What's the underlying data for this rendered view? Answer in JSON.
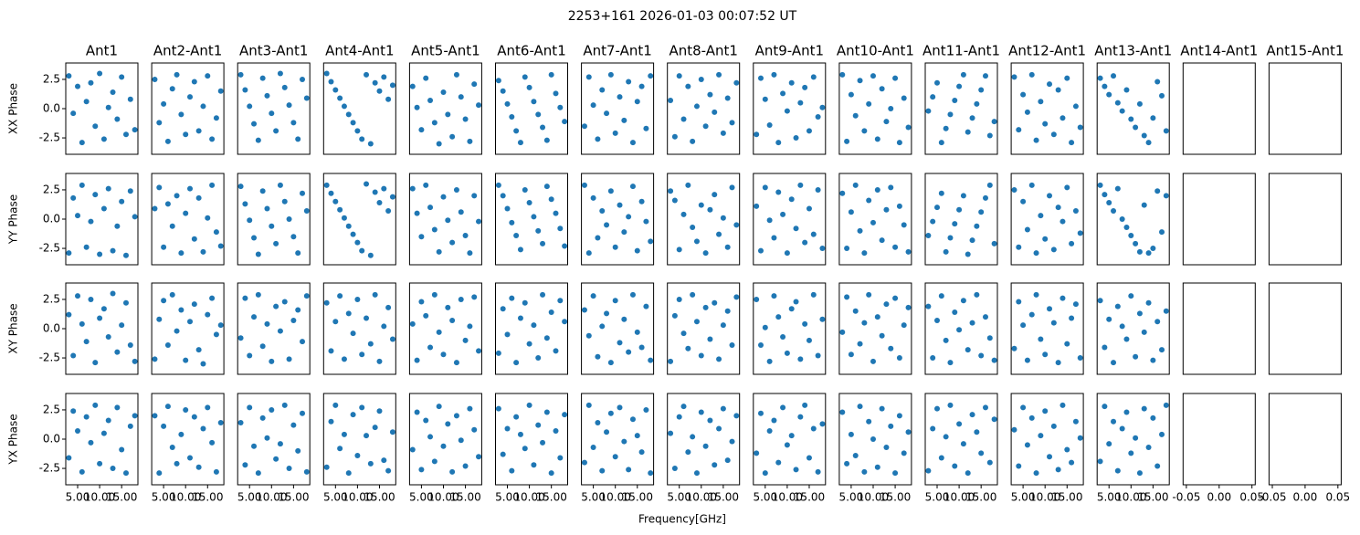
{
  "chart_data": {
    "type": "scatter",
    "title": "2253+161 2026-01-03 00:07:52 UT",
    "xlabel": "Frequency[GHz]",
    "color": "#1f77b4",
    "row_labels": [
      "XX Phase",
      "YY Phase",
      "XY Phase",
      "YX Phase"
    ],
    "x": [
      3,
      4,
      5,
      6,
      7,
      8,
      9,
      10,
      11,
      12,
      13,
      14,
      15,
      16,
      17,
      18
    ],
    "xlim": [
      2.3,
      18.7
    ],
    "xticks": [
      {
        "value": 5,
        "label": "5.00"
      },
      {
        "value": 10,
        "label": "10.00"
      },
      {
        "value": 15,
        "label": "15.00"
      }
    ],
    "ylim": [
      -3.9,
      3.9
    ],
    "yticks": [
      -2.5,
      {
        "value": 0,
        "label": "0.0"
      },
      2.5
    ],
    "columns": [
      {
        "title": "Ant1",
        "rows": [
          [
            2.8,
            -0.4,
            1.9,
            -2.9,
            0.6,
            2.2,
            -1.5,
            3.0,
            -2.6,
            0.1,
            1.4,
            -0.9,
            2.7,
            -2.2,
            0.8,
            -1.8
          ],
          [
            -2.9,
            1.8,
            0.3,
            2.9,
            -2.4,
            -0.2,
            2.1,
            -3.0,
            0.9,
            2.6,
            -2.7,
            -0.6,
            1.5,
            -3.1,
            2.4,
            0.2
          ],
          [
            1.2,
            -2.3,
            2.8,
            0.4,
            -1.1,
            2.5,
            -2.9,
            0.9,
            1.7,
            -0.7,
            3.0,
            -2.0,
            0.3,
            2.2,
            -1.4,
            -2.8
          ],
          [
            -1.6,
            2.4,
            0.7,
            -2.8,
            1.9,
            -0.3,
            2.9,
            -2.1,
            0.5,
            1.6,
            -2.5,
            2.7,
            -0.9,
            -2.9,
            1.1,
            2.0
          ]
        ]
      },
      {
        "title": "Ant2-Ant1",
        "rows": [
          [
            2.5,
            -1.2,
            0.4,
            -2.8,
            1.7,
            2.9,
            -0.5,
            -2.2,
            1.0,
            2.3,
            -1.9,
            0.2,
            2.8,
            -2.6,
            -0.8,
            1.5
          ],
          [
            0.9,
            2.7,
            -2.4,
            1.3,
            -0.6,
            2.0,
            -2.9,
            0.5,
            2.6,
            -1.7,
            1.8,
            -2.8,
            0.1,
            2.9,
            -1.1,
            -2.3
          ],
          [
            -2.6,
            0.8,
            2.4,
            -1.4,
            2.9,
            -0.2,
            1.6,
            -2.7,
            0.6,
            2.1,
            -1.8,
            -3.0,
            1.2,
            2.6,
            -0.5,
            0.3
          ],
          [
            2.0,
            -2.9,
            1.1,
            2.8,
            -0.7,
            -2.1,
            0.4,
            2.5,
            -1.6,
            1.9,
            -2.4,
            0.9,
            2.7,
            -0.3,
            -2.8,
            1.4
          ]
        ]
      },
      {
        "title": "Ant3-Ant1",
        "rows": [
          [
            2.9,
            1.6,
            0.2,
            -1.3,
            -2.7,
            2.6,
            1.1,
            -0.4,
            -1.9,
            3.0,
            1.8,
            0.3,
            -1.2,
            -2.6,
            2.5,
            0.9
          ],
          [
            2.8,
            1.3,
            -0.1,
            -1.6,
            -3.0,
            2.4,
            0.9,
            -0.6,
            -2.1,
            2.9,
            1.5,
            0.0,
            -1.5,
            -2.9,
            2.2,
            0.7
          ],
          [
            -0.8,
            2.6,
            -2.3,
            1.0,
            2.9,
            -1.5,
            0.4,
            -2.8,
            1.9,
            -0.2,
            2.3,
            -2.6,
            0.7,
            1.6,
            -1.1,
            2.8
          ],
          [
            1.4,
            -2.2,
            2.7,
            -0.6,
            -2.9,
            1.8,
            0.1,
            2.5,
            -1.7,
            -0.4,
            2.9,
            -2.5,
            1.2,
            -1.0,
            2.2,
            -2.8
          ]
        ]
      },
      {
        "title": "Ant4-Ant1",
        "rows": [
          [
            3.0,
            2.3,
            1.6,
            0.9,
            0.2,
            -0.5,
            -1.2,
            -1.9,
            -2.6,
            2.9,
            -3.0,
            2.2,
            1.5,
            2.7,
            0.8,
            2.0
          ],
          [
            2.9,
            2.2,
            1.5,
            0.8,
            0.1,
            -0.6,
            -1.3,
            -2.0,
            -2.7,
            3.0,
            -3.1,
            2.3,
            1.4,
            2.6,
            0.7,
            1.9
          ],
          [
            2.2,
            -1.9,
            0.6,
            2.8,
            -2.6,
            1.3,
            -0.4,
            2.5,
            -2.2,
            0.9,
            -1.3,
            2.9,
            -2.8,
            0.2,
            1.8,
            -0.9
          ],
          [
            -2.4,
            1.5,
            2.9,
            -0.8,
            0.4,
            -2.9,
            2.1,
            -1.4,
            2.7,
            0.3,
            -2.1,
            1.0,
            2.4,
            -1.8,
            -2.7,
            0.6
          ]
        ]
      },
      {
        "title": "Ant5-Ant1",
        "rows": [
          [
            1.9,
            0.1,
            -1.8,
            2.6,
            0.7,
            -1.2,
            -3.0,
            1.4,
            -0.5,
            -2.4,
            2.9,
            1.0,
            -0.9,
            -2.8,
            2.1,
            0.3
          ],
          [
            2.6,
            0.5,
            -1.5,
            2.9,
            1.0,
            -0.9,
            -2.8,
            1.9,
            -0.1,
            -2.0,
            2.5,
            0.6,
            -1.4,
            -2.9,
            2.0,
            -0.2
          ],
          [
            0.4,
            -2.7,
            2.3,
            1.1,
            -1.6,
            2.9,
            -0.3,
            -2.2,
            1.8,
            0.7,
            -2.9,
            2.5,
            -1.0,
            0.2,
            2.7,
            -1.9
          ],
          [
            -0.9,
            2.3,
            -2.6,
            1.6,
            0.2,
            -1.9,
            2.8,
            -0.6,
            1.3,
            -2.8,
            2.0,
            -0.1,
            -2.3,
            2.6,
            0.8,
            -1.5
          ]
        ]
      },
      {
        "title": "Ant6-Ant1",
        "rows": [
          [
            2.4,
            1.5,
            0.4,
            -0.7,
            -1.9,
            -2.9,
            2.7,
            1.8,
            0.6,
            -0.5,
            -1.6,
            -2.7,
            2.9,
            1.3,
            0.1,
            -1.1
          ],
          [
            2.9,
            2.0,
            0.9,
            -0.3,
            -1.4,
            -2.6,
            2.5,
            1.4,
            0.2,
            -1.0,
            -2.1,
            2.8,
            1.7,
            0.5,
            -0.8,
            -2.3
          ],
          [
            -2.1,
            1.7,
            -0.5,
            2.6,
            -2.9,
            0.9,
            2.2,
            -1.3,
            0.3,
            -2.5,
            2.9,
            -0.8,
            1.4,
            -1.9,
            2.4,
            0.6
          ],
          [
            2.6,
            -1.3,
            0.9,
            -2.7,
            1.9,
            0.4,
            -0.8,
            2.9,
            -2.2,
            1.2,
            -0.3,
            2.3,
            -2.9,
            0.7,
            -1.6,
            2.1
          ]
        ]
      },
      {
        "title": "Ant7-Ant1",
        "rows": [
          [
            -1.5,
            2.7,
            0.3,
            -2.6,
            1.6,
            -0.4,
            2.9,
            -2.1,
            1.0,
            -1.0,
            2.3,
            -2.9,
            0.6,
            1.9,
            -1.7,
            2.8
          ],
          [
            2.9,
            -2.9,
            1.8,
            -1.6,
            0.7,
            -0.5,
            2.4,
            -2.4,
            1.2,
            -1.1,
            0.2,
            2.8,
            -2.7,
            1.5,
            -0.2,
            -1.9
          ],
          [
            1.6,
            -0.6,
            2.8,
            -2.4,
            0.2,
            1.3,
            -2.9,
            2.4,
            -1.2,
            0.8,
            -2.0,
            2.9,
            -0.3,
            -1.6,
            1.9,
            -2.7
          ],
          [
            -2.0,
            2.9,
            -0.7,
            1.4,
            -2.7,
            0.6,
            2.2,
            -1.5,
            2.7,
            -0.2,
            -2.6,
            1.7,
            0.3,
            -1.1,
            2.5,
            -2.9
          ]
        ]
      },
      {
        "title": "Ant8-Ant1",
        "rows": [
          [
            0.7,
            -2.4,
            2.8,
            -0.9,
            1.9,
            -2.8,
            0.2,
            2.5,
            -1.5,
            1.2,
            -0.3,
            2.9,
            -2.1,
            0.9,
            -1.2,
            2.2
          ],
          [
            2.4,
            1.6,
            -2.6,
            0.4,
            2.9,
            -0.7,
            -1.9,
            1.2,
            -2.9,
            0.8,
            2.1,
            -1.3,
            0.1,
            -2.4,
            2.7,
            -0.5
          ],
          [
            -2.8,
            1.1,
            2.5,
            -0.4,
            -1.7,
            2.9,
            0.6,
            -2.3,
            1.8,
            -0.9,
            2.2,
            -2.6,
            0.3,
            1.5,
            -1.4,
            2.7
          ],
          [
            0.5,
            -2.5,
            1.9,
            2.8,
            -1.1,
            0.2,
            -2.9,
            2.3,
            -0.6,
            1.6,
            -2.2,
            0.9,
            2.6,
            -1.8,
            -0.2,
            2.0
          ]
        ]
      },
      {
        "title": "Ant9-Ant1",
        "rows": [
          [
            -2.2,
            2.6,
            0.8,
            -1.4,
            2.9,
            -2.9,
            1.3,
            -0.2,
            2.2,
            -2.5,
            0.5,
            1.8,
            -1.9,
            2.7,
            -0.7,
            0.1
          ],
          [
            1.1,
            -2.7,
            2.7,
            -0.1,
            -1.6,
            2.3,
            0.4,
            -2.9,
            1.7,
            -0.8,
            2.9,
            -2.0,
            0.9,
            -1.3,
            2.5,
            -2.5
          ],
          [
            2.5,
            -1.4,
            0.1,
            -2.8,
            2.8,
            1.0,
            -0.7,
            -2.1,
            1.7,
            2.3,
            -2.6,
            0.4,
            -1.0,
            2.9,
            -2.3,
            0.8
          ],
          [
            -1.2,
            2.2,
            -2.9,
            0.7,
            1.6,
            -2.0,
            2.7,
            -0.5,
            0.3,
            -2.6,
            1.9,
            2.9,
            -1.6,
            0.9,
            -2.8,
            1.3
          ]
        ]
      },
      {
        "title": "Ant10-Ant1",
        "rows": [
          [
            2.9,
            -2.8,
            1.2,
            -0.6,
            2.4,
            -1.9,
            0.4,
            2.8,
            -2.6,
            1.7,
            -1.1,
            0.0,
            2.6,
            -2.9,
            0.9,
            -1.6
          ],
          [
            2.2,
            -2.5,
            0.6,
            2.9,
            -1.0,
            -2.9,
            1.6,
            -0.3,
            2.5,
            -1.8,
            0.8,
            2.7,
            -2.4,
            1.1,
            -0.5,
            -2.8
          ],
          [
            -0.3,
            2.7,
            -2.2,
            1.5,
            -1.3,
            0.5,
            2.9,
            -2.8,
            1.0,
            -0.6,
            2.1,
            -1.7,
            2.6,
            -2.5,
            0.3,
            1.8
          ],
          [
            2.3,
            -2.1,
            0.4,
            -1.4,
            2.8,
            -2.8,
            1.5,
            0.0,
            -2.4,
            2.6,
            -0.7,
            1.1,
            -2.9,
            2.0,
            -1.2,
            0.6
          ]
        ]
      },
      {
        "title": "Ant11-Ant1",
        "rows": [
          [
            -0.2,
            1.0,
            2.2,
            -2.9,
            -1.7,
            -0.5,
            0.7,
            1.9,
            2.9,
            -2.0,
            -0.8,
            0.4,
            1.6,
            2.8,
            -2.3,
            -1.1
          ],
          [
            -1.4,
            -0.2,
            1.0,
            2.2,
            -2.8,
            -1.6,
            -0.4,
            0.8,
            2.0,
            -3.0,
            -1.8,
            -0.6,
            0.6,
            1.8,
            2.9,
            -2.1
          ],
          [
            1.9,
            -2.5,
            0.7,
            2.8,
            -1.0,
            -2.9,
            1.4,
            -0.1,
            2.4,
            -1.8,
            0.5,
            2.9,
            -2.3,
            1.0,
            -0.8,
            -2.7
          ],
          [
            -2.7,
            0.9,
            2.6,
            -1.6,
            0.2,
            2.9,
            -2.3,
            1.3,
            -0.4,
            -2.9,
            2.1,
            0.6,
            -1.2,
            2.7,
            -2.0,
            1.7
          ]
        ]
      },
      {
        "title": "Ant12-Ant1",
        "rows": [
          [
            2.7,
            -1.8,
            1.2,
            -0.3,
            2.9,
            -2.7,
            0.6,
            -1.3,
            2.1,
            -2.2,
            1.6,
            -0.8,
            2.6,
            -2.9,
            0.2,
            -1.6
          ],
          [
            2.5,
            -2.4,
            1.5,
            -0.9,
            2.9,
            -2.9,
            0.3,
            -1.7,
            2.0,
            -2.6,
            1.0,
            -0.2,
            2.7,
            -2.1,
            0.7,
            -1.2
          ],
          [
            -1.7,
            2.3,
            0.3,
            -2.7,
            1.2,
            2.9,
            -0.9,
            -2.2,
            1.7,
            0.5,
            -2.9,
            2.6,
            -1.3,
            0.9,
            2.1,
            -2.5
          ],
          [
            0.8,
            -2.3,
            2.7,
            -0.5,
            1.8,
            -2.9,
            0.3,
            2.4,
            -1.5,
            1.1,
            -2.6,
            2.9,
            -0.9,
            -2.0,
            1.5,
            0.1
          ]
        ]
      },
      {
        "title": "Ant13-Ant1",
        "rows": [
          [
            2.6,
            1.9,
            1.2,
            2.8,
            0.5,
            -0.2,
            1.6,
            -0.9,
            -1.6,
            0.4,
            -2.3,
            -2.9,
            -0.8,
            2.3,
            1.1,
            -1.9
          ],
          [
            2.9,
            2.1,
            1.4,
            0.7,
            2.6,
            0.0,
            -0.7,
            -1.4,
            -2.1,
            -2.8,
            1.2,
            -2.9,
            -2.5,
            2.4,
            -1.1,
            2.0
          ],
          [
            2.4,
            -1.6,
            0.8,
            -2.9,
            1.9,
            0.2,
            -0.9,
            2.8,
            -2.4,
            1.3,
            -0.3,
            2.2,
            -2.7,
            0.6,
            -1.8,
            1.5
          ],
          [
            -1.9,
            2.8,
            -0.4,
            1.5,
            -2.7,
            0.9,
            2.3,
            -1.2,
            0.1,
            -2.9,
            2.6,
            -0.7,
            1.8,
            -2.3,
            0.4,
            2.9
          ]
        ]
      },
      {
        "title": "Ant14-Ant1",
        "xlim": [
          -0.055,
          0.055
        ],
        "xticks": [
          -0.05,
          {
            "value": 0,
            "label": "0.00"
          },
          0.05
        ]
      },
      {
        "title": "Ant15-Ant1",
        "xlim": [
          -0.055,
          0.055
        ],
        "xticks": [
          -0.05,
          {
            "value": 0,
            "label": "0.00"
          },
          0.05
        ]
      }
    ]
  }
}
